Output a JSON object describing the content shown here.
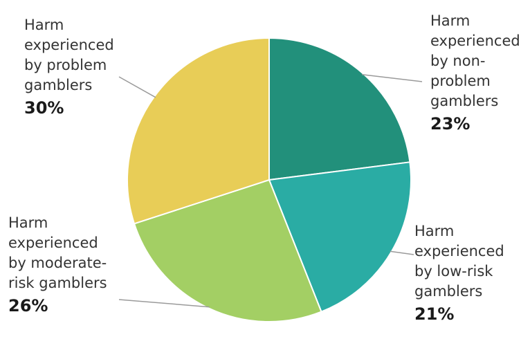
{
  "chart_data": {
    "type": "pie",
    "slices": [
      {
        "label_lines": [
          "Harm",
          "experienced",
          "by non-",
          "problem",
          "gamblers"
        ],
        "value": 23,
        "value_label": "23%",
        "color": "#22907b"
      },
      {
        "label_lines": [
          "Harm",
          "experienced",
          "by low-risk",
          "gamblers"
        ],
        "value": 21,
        "value_label": "21%",
        "color": "#2aaca4"
      },
      {
        "label_lines": [
          "Harm",
          "experienced",
          "by moderate-",
          "risk gamblers"
        ],
        "value": 26,
        "value_label": "26%",
        "color": "#a3cf64"
      },
      {
        "label_lines": [
          "Harm",
          "experienced",
          "by problem",
          "gamblers"
        ],
        "value": 30,
        "value_label": "30%",
        "color": "#e8cd57"
      }
    ],
    "legend": "none"
  }
}
